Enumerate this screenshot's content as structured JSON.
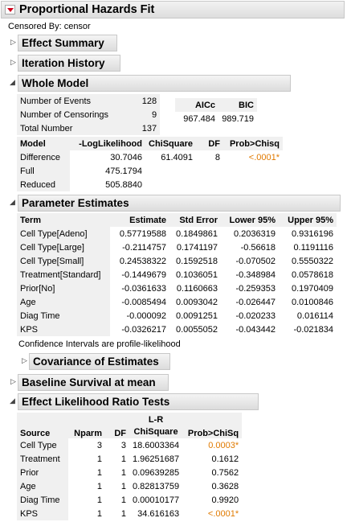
{
  "title": "Proportional Hazards Fit",
  "censored_by": "Censored By: censor",
  "sections": {
    "effect_summary": "Effect Summary",
    "iteration_history": "Iteration History",
    "whole_model": "Whole Model",
    "parameter_estimates": "Parameter Estimates",
    "covariance": "Covariance of Estimates",
    "baseline": "Baseline Survival at mean",
    "lr_tests": "Effect Likelihood Ratio Tests"
  },
  "whole_model": {
    "counts": [
      {
        "label": "Number of Events",
        "value": "128"
      },
      {
        "label": "Number of Censorings",
        "value": "9"
      },
      {
        "label": "Total Number",
        "value": "137"
      }
    ],
    "aicc_label": "AICc",
    "bic_label": "BIC",
    "aicc": "967.484",
    "bic": "989.719",
    "headers": [
      "Model",
      "-LogLikelihood",
      "ChiSquare",
      "DF",
      "Prob>Chisq"
    ],
    "rows": [
      {
        "model": "Difference",
        "ll": "30.7046",
        "chi": "61.4091",
        "df": "8",
        "p": "<.0001*"
      },
      {
        "model": "Full",
        "ll": "475.1794",
        "chi": "",
        "df": "",
        "p": ""
      },
      {
        "model": "Reduced",
        "ll": "505.8840",
        "chi": "",
        "df": "",
        "p": ""
      }
    ]
  },
  "parameter_estimates": {
    "headers": [
      "Term",
      "Estimate",
      "Std Error",
      "Lower 95%",
      "Upper 95%"
    ],
    "rows": [
      {
        "term": "Cell Type[Adeno]",
        "est": "0.57719588",
        "se": "0.1849861",
        "lo": "0.2036319",
        "hi": "0.9316196"
      },
      {
        "term": "Cell Type[Large]",
        "est": "-0.2114757",
        "se": "0.1741197",
        "lo": "-0.56618",
        "hi": "0.1191116"
      },
      {
        "term": "Cell Type[Small]",
        "est": "0.24538322",
        "se": "0.1592518",
        "lo": "-0.070502",
        "hi": "0.5550322"
      },
      {
        "term": "Treatment[Standard]",
        "est": "-0.1449679",
        "se": "0.1036051",
        "lo": "-0.348984",
        "hi": "0.0578618"
      },
      {
        "term": "Prior[No]",
        "est": "-0.0361633",
        "se": "0.1160663",
        "lo": "-0.259353",
        "hi": "0.1970409"
      },
      {
        "term": "Age",
        "est": "-0.0085494",
        "se": "0.0093042",
        "lo": "-0.026447",
        "hi": "0.0100846"
      },
      {
        "term": "Diag Time",
        "est": "-0.000092",
        "se": "0.0091251",
        "lo": "-0.020233",
        "hi": "0.016114"
      },
      {
        "term": "KPS",
        "est": "-0.0326217",
        "se": "0.0055052",
        "lo": "-0.043442",
        "hi": "-0.021834"
      }
    ],
    "note": "Confidence Intervals are profile-likelihood"
  },
  "lr_tests": {
    "headers": {
      "source": "Source",
      "nparm": "Nparm",
      "df": "DF",
      "chi_top": "L-R",
      "chi_bottom": "ChiSquare",
      "p": "Prob>ChiSq"
    },
    "rows": [
      {
        "source": "Cell Type",
        "nparm": "3",
        "df": "3",
        "chi": "18.6003364",
        "p": "0.0003*",
        "sig": true
      },
      {
        "source": "Treatment",
        "nparm": "1",
        "df": "1",
        "chi": "1.96251687",
        "p": "0.1612",
        "sig": false
      },
      {
        "source": "Prior",
        "nparm": "1",
        "df": "1",
        "chi": "0.09639285",
        "p": "0.7562",
        "sig": false
      },
      {
        "source": "Age",
        "nparm": "1",
        "df": "1",
        "chi": "0.82813759",
        "p": "0.3628",
        "sig": false
      },
      {
        "source": "Diag Time",
        "nparm": "1",
        "df": "1",
        "chi": "0.00010177",
        "p": "0.9920",
        "sig": false
      },
      {
        "source": "KPS",
        "nparm": "1",
        "df": "1",
        "chi": "34.616163",
        "p": "<.0001*",
        "sig": true
      }
    ]
  }
}
